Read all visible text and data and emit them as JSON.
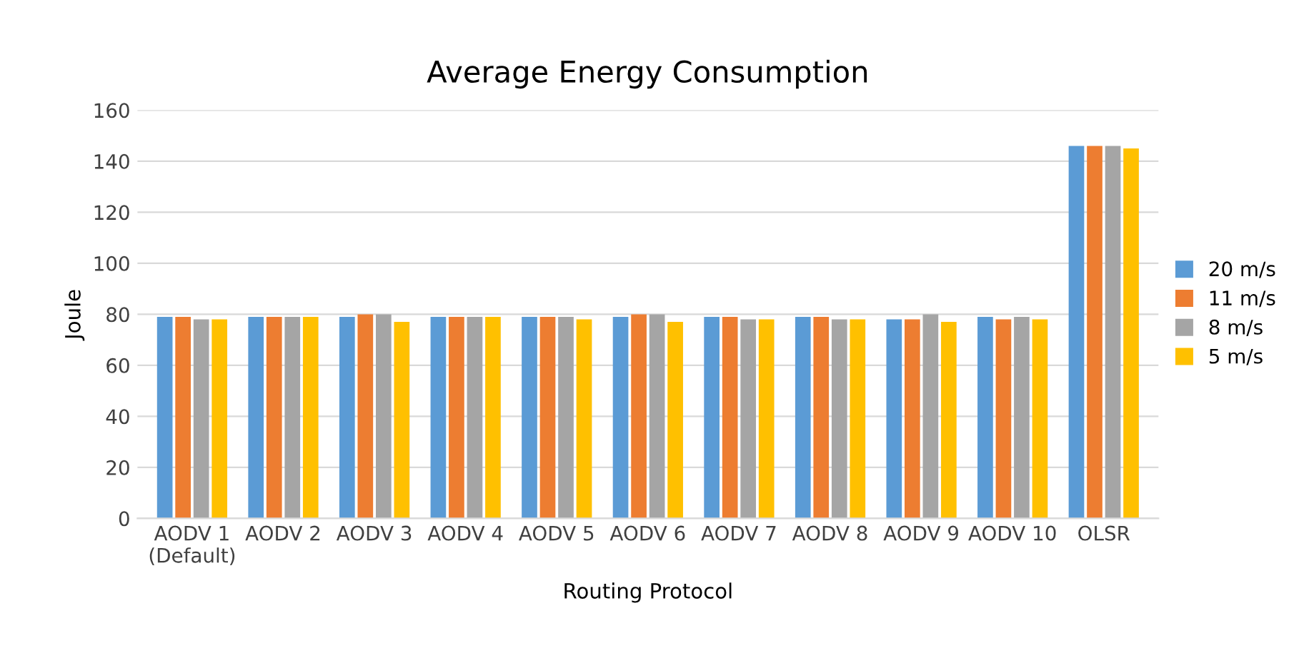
{
  "chart_data": {
    "type": "bar",
    "title": "Average Energy Consumption",
    "xlabel": "Routing Protocol",
    "ylabel": "Joule",
    "categories": [
      "AODV 1\n(Default)",
      "AODV 2",
      "AODV 3",
      "AODV 4",
      "AODV 5",
      "AODV 6",
      "AODV 7",
      "AODV 8",
      "AODV 9",
      "AODV 10",
      "OLSR"
    ],
    "series": [
      {
        "name": "20 m/s",
        "color": "#5b9bd5",
        "values": [
          79,
          79,
          79,
          79,
          79,
          79,
          79,
          79,
          78,
          79,
          146
        ]
      },
      {
        "name": "11 m/s",
        "color": "#ed7d31",
        "values": [
          79,
          79,
          80,
          79,
          79,
          80,
          79,
          79,
          78,
          78,
          146
        ]
      },
      {
        "name": "8 m/s",
        "color": "#a5a5a5",
        "values": [
          78,
          79,
          80,
          79,
          79,
          80,
          78,
          78,
          80,
          79,
          146
        ]
      },
      {
        "name": "5 m/s",
        "color": "#ffc000",
        "values": [
          78,
          79,
          77,
          79,
          78,
          77,
          78,
          78,
          77,
          78,
          145
        ]
      }
    ],
    "ylim": [
      0,
      160
    ],
    "yticks": [
      0,
      20,
      40,
      60,
      80,
      100,
      120,
      140,
      160
    ],
    "grid": "y",
    "legend": "right"
  }
}
